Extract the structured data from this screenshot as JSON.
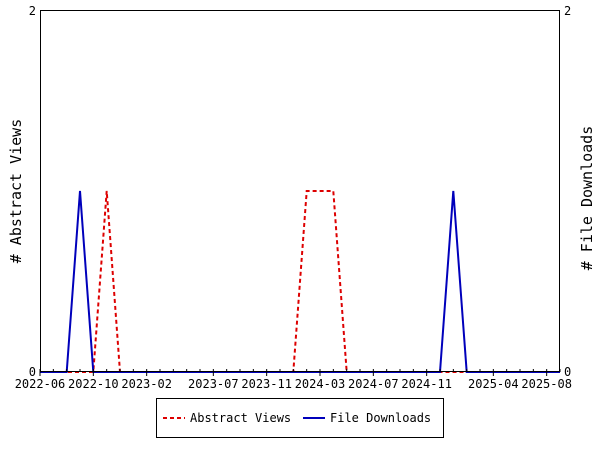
{
  "chart_data": {
    "type": "line",
    "title": "",
    "xlabel": "",
    "ylabel": "# Abstract Views",
    "ylabel_right": "# File Downloads",
    "ylim": [
      0,
      2
    ],
    "y_ticks": [
      "0",
      "2"
    ],
    "y_ticks_right": [
      "0",
      "2"
    ],
    "x": [
      "2022-06",
      "2022-07",
      "2022-08",
      "2022-09",
      "2022-10",
      "2022-11",
      "2022-12",
      "2023-01",
      "2023-02",
      "2023-03",
      "2023-04",
      "2023-05",
      "2023-06",
      "2023-07",
      "2023-08",
      "2023-09",
      "2023-10",
      "2023-11",
      "2023-12",
      "2024-01",
      "2024-02",
      "2024-03",
      "2024-04",
      "2024-05",
      "2024-06",
      "2024-07",
      "2024-08",
      "2024-09",
      "2024-10",
      "2024-11",
      "2024-12",
      "2025-01",
      "2025-02",
      "2025-03",
      "2025-04",
      "2025-05",
      "2025-06",
      "2025-07",
      "2025-08",
      "2025-09"
    ],
    "x_tick_labels": [
      "2022-06",
      "2022-10",
      "2023-02",
      "2023-07",
      "2023-11",
      "2024-03",
      "2024-07",
      "2024-11",
      "2025-04",
      "2025-08"
    ],
    "series": [
      {
        "name": "Abstract Views",
        "color": "#dd0000",
        "style": "dashed",
        "values": [
          0,
          0,
          0,
          0,
          0,
          1,
          0,
          0,
          0,
          0,
          0,
          0,
          0,
          0,
          0,
          0,
          0,
          0,
          0,
          0,
          1,
          1,
          1,
          0,
          0,
          0,
          0,
          0,
          0,
          0,
          0,
          0,
          0,
          0,
          0,
          0,
          0,
          0,
          0,
          0
        ]
      },
      {
        "name": "File Downloads",
        "color": "#0000bb",
        "style": "solid",
        "values": [
          0,
          0,
          0,
          1,
          0,
          0,
          0,
          0,
          0,
          0,
          0,
          0,
          0,
          0,
          0,
          0,
          0,
          0,
          0,
          0,
          0,
          0,
          0,
          0,
          0,
          0,
          0,
          0,
          0,
          0,
          0,
          1,
          0,
          0,
          0,
          0,
          0,
          0,
          0,
          0
        ]
      }
    ],
    "grid": false,
    "legend_position": "bottom"
  }
}
